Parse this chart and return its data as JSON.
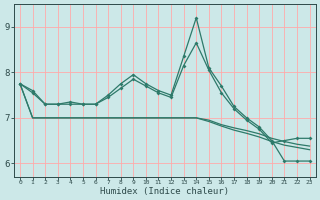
{
  "xlabel": "Humidex (Indice chaleur)",
  "bg_color": "#cce8e8",
  "grid_color": "#ffaaaa",
  "line_color": "#2e7a6a",
  "xlim": [
    -0.5,
    23.5
  ],
  "ylim": [
    5.7,
    9.5
  ],
  "x": [
    0,
    1,
    2,
    3,
    4,
    5,
    6,
    7,
    8,
    9,
    10,
    11,
    12,
    13,
    14,
    15,
    16,
    17,
    18,
    19,
    20,
    21,
    22,
    23
  ],
  "line1": [
    7.75,
    7.6,
    7.3,
    7.3,
    7.35,
    7.3,
    7.3,
    7.5,
    7.75,
    7.95,
    7.75,
    7.6,
    7.5,
    8.35,
    9.2,
    8.1,
    7.7,
    7.25,
    7.0,
    6.8,
    6.5,
    6.05,
    6.05,
    6.05
  ],
  "line2": [
    7.75,
    7.55,
    7.3,
    7.3,
    7.3,
    7.3,
    7.3,
    7.45,
    7.65,
    7.85,
    7.7,
    7.55,
    7.45,
    8.15,
    8.65,
    8.05,
    7.55,
    7.2,
    6.95,
    6.75,
    6.45,
    6.5,
    6.55,
    6.55
  ],
  "line3": [
    7.75,
    7.0,
    7.0,
    7.0,
    7.0,
    7.0,
    7.0,
    7.0,
    7.0,
    7.0,
    7.0,
    7.0,
    7.0,
    7.0,
    7.0,
    6.95,
    6.85,
    6.78,
    6.72,
    6.65,
    6.55,
    6.48,
    6.42,
    6.38
  ],
  "line4": [
    7.75,
    7.0,
    7.0,
    7.0,
    7.0,
    7.0,
    7.0,
    7.0,
    7.0,
    7.0,
    7.0,
    7.0,
    7.0,
    7.0,
    7.0,
    6.92,
    6.82,
    6.73,
    6.66,
    6.58,
    6.48,
    6.4,
    6.35,
    6.3
  ],
  "xticks": [
    0,
    1,
    2,
    3,
    4,
    5,
    6,
    7,
    8,
    9,
    10,
    11,
    12,
    13,
    14,
    15,
    16,
    17,
    18,
    19,
    20,
    21,
    22,
    23
  ],
  "yticks": [
    6,
    7,
    8,
    9
  ],
  "spine_color": "#2e4a4a"
}
